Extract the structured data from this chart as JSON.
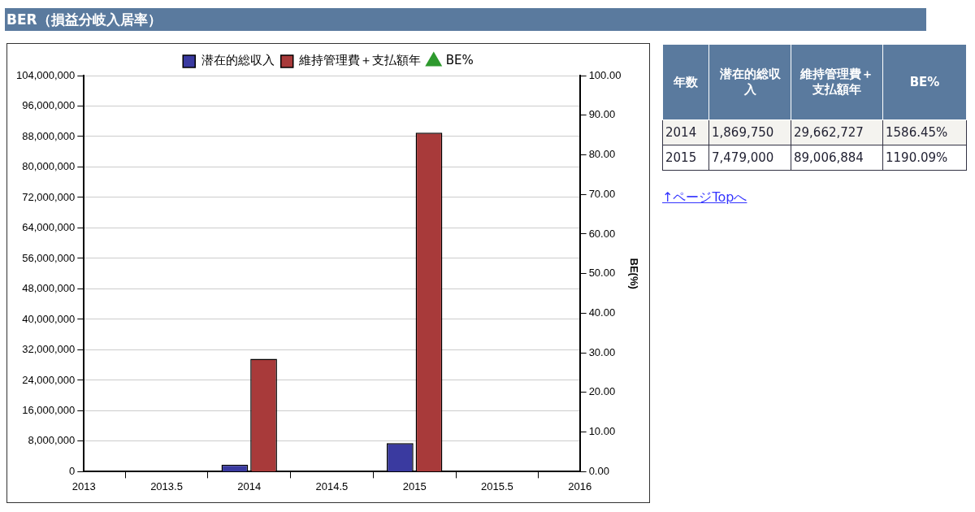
{
  "chart_data": [
    {
      "type": "bar",
      "title": "BER（損益分岐入居率）",
      "y2label": "BE(%)",
      "x": [
        2014,
        2015
      ],
      "series": [
        {
          "name": "潜在的総収入",
          "color": "#3a3aa0",
          "values": [
            1869750,
            7479000
          ]
        },
        {
          "name": "維持管理費＋支払額年",
          "color": "#a83a3a",
          "values": [
            29662727,
            89006884
          ]
        },
        {
          "name": "BE%",
          "type": "line",
          "color": "#2e9a2e",
          "marker": "triangle",
          "values": [
            null,
            null
          ]
        }
      ],
      "xlim": [
        2013,
        2016
      ],
      "xticks": [
        2013,
        2013.5,
        2014,
        2014.5,
        2015,
        2015.5,
        2016
      ],
      "ylim": [
        0,
        104000000
      ],
      "yticks": [
        0,
        {
          "value": 8000000,
          "label": "8,000,000"
        },
        {
          "value": 16000000,
          "label": "16,000,000"
        },
        {
          "value": 24000000,
          "label": "24,000,000"
        },
        {
          "value": 32000000,
          "label": "32,000,000"
        },
        {
          "value": 40000000,
          "label": "40,000,000"
        },
        {
          "value": 48000000,
          "label": "48,000,000"
        },
        {
          "value": 56000000,
          "label": "56,000,000"
        },
        {
          "value": 64000000,
          "label": "64,000,000"
        },
        {
          "value": 72000000,
          "label": "72,000,000"
        },
        {
          "value": 80000000,
          "label": "80,000,000"
        },
        {
          "value": 88000000,
          "label": "88,000,000"
        },
        {
          "value": 96000000,
          "label": "96,000,000"
        },
        {
          "value": 104000000,
          "label": "104,000,000"
        }
      ],
      "y2lim": [
        0,
        100
      ],
      "y2ticks": [
        {
          "value": 0,
          "label": "0.00"
        },
        {
          "value": 10,
          "label": "10.00"
        },
        {
          "value": 20,
          "label": "20.00"
        },
        {
          "value": 30,
          "label": "30.00"
        },
        {
          "value": 40,
          "label": "40.00"
        },
        {
          "value": 50,
          "label": "50.00"
        },
        {
          "value": 60,
          "label": "60.00"
        },
        {
          "value": 70,
          "label": "70.00"
        },
        {
          "value": 80,
          "label": "80.00"
        },
        {
          "value": 90,
          "label": "90.00"
        },
        {
          "value": 100,
          "label": "100.00"
        }
      ],
      "grid": "y",
      "legend": "top"
    },
    {
      "type": "other",
      "annotations": [
        "年数",
        "潜在的総収入",
        "維持管理費＋支払額年",
        "BE%",
        "2014",
        "1,869,750",
        "29,662,727",
        "1586.45%",
        "2015",
        "7,479,000",
        "89,006,884",
        "1190.09%",
        "↑ページTopへ"
      ]
    }
  ]
}
